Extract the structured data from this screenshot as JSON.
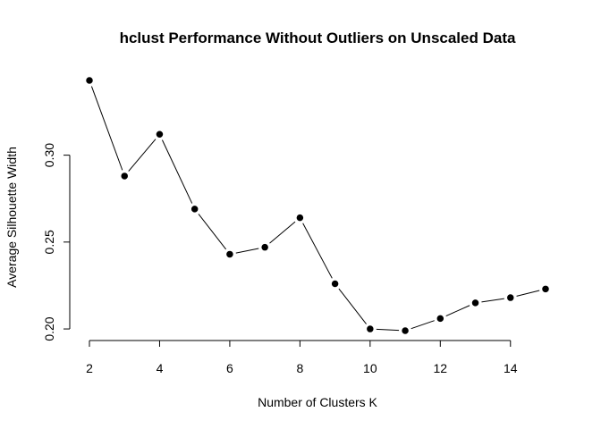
{
  "chart_data": {
    "type": "line",
    "title": "hclust Performance Without Outliers on Unscaled Data",
    "xlabel": "Number of Clusters K",
    "ylabel": "Average Silhouette Width",
    "x": [
      2,
      3,
      4,
      5,
      6,
      7,
      8,
      9,
      10,
      11,
      12,
      13,
      14,
      15
    ],
    "series": [
      {
        "values": [
          0.343,
          0.288,
          0.312,
          0.269,
          0.243,
          0.247,
          0.264,
          0.226,
          0.2,
          0.199,
          0.206,
          0.215,
          0.218,
          0.223
        ]
      }
    ],
    "xlim": [
      2,
      15
    ],
    "ylim": [
      0.199,
      0.343
    ],
    "x_ticks": [
      2,
      4,
      6,
      8,
      10,
      12,
      14
    ],
    "x_tick_labels": [
      "2",
      "4",
      "6",
      "8",
      "10",
      "12",
      "14"
    ],
    "y_ticks": [
      0.2,
      0.25,
      0.3
    ],
    "y_tick_labels": [
      "0.20",
      "0.25",
      "0.30"
    ],
    "grid": false,
    "marker": "filled-circle",
    "colors": {
      "line": "#000000",
      "point": "#000000",
      "point_edge": "#ffffff"
    }
  }
}
